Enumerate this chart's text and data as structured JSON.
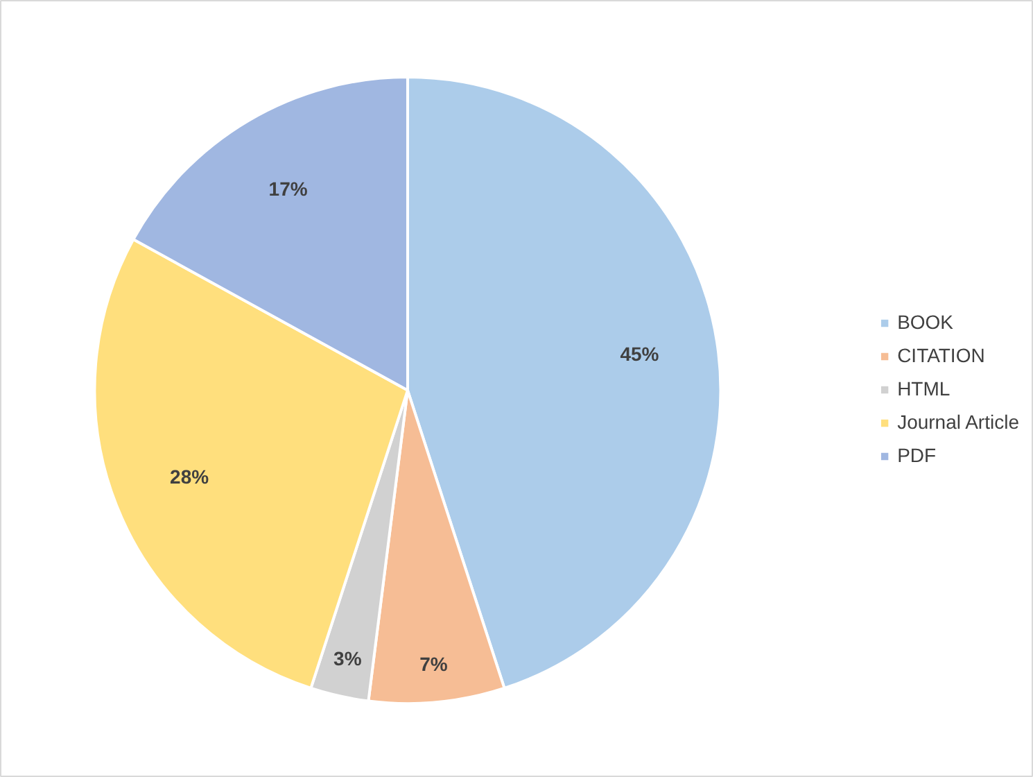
{
  "chart_data": {
    "type": "pie",
    "categories": [
      "BOOK",
      "CITATION",
      "HTML",
      "Journal Article",
      "PDF"
    ],
    "values": [
      45,
      7,
      3,
      28,
      17
    ],
    "colors": [
      "#9dc3e6",
      "#f4b183",
      "#c9c9c9",
      "#ffd966",
      "#8faadc"
    ],
    "value_labels": [
      "45%",
      "7%",
      "3%",
      "28%",
      "17%"
    ],
    "legend": "right"
  }
}
